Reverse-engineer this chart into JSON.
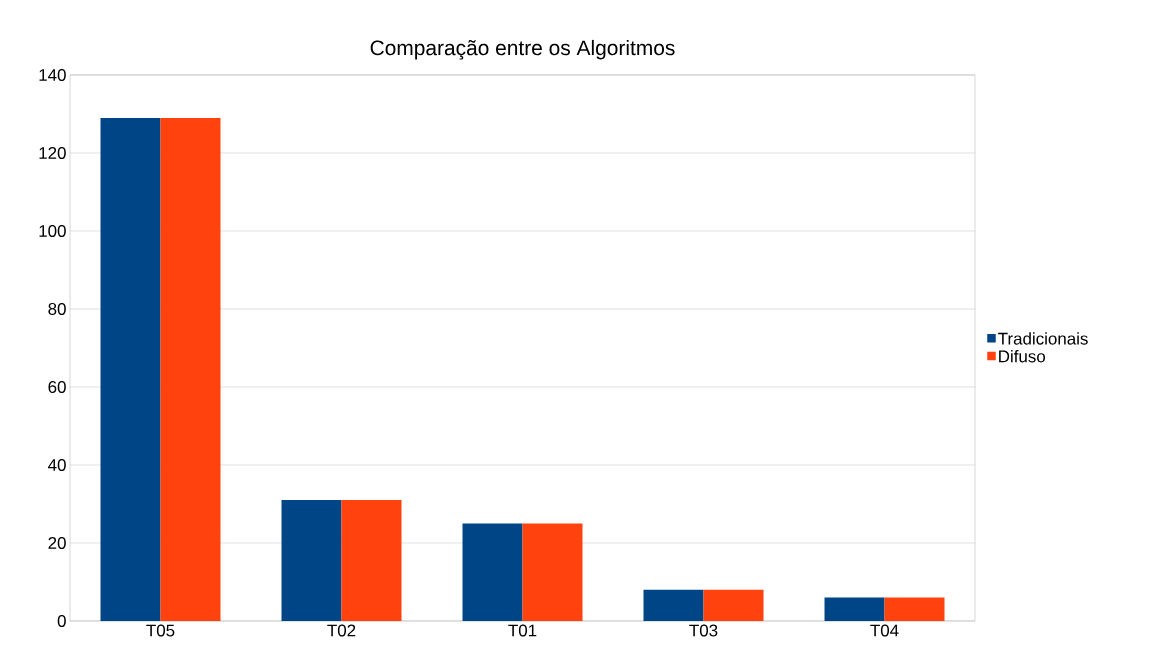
{
  "chart_data": {
    "type": "bar",
    "title": "Comparação entre os Algoritmos",
    "categories": [
      "T05",
      "T02",
      "T01",
      "T03",
      "T04"
    ],
    "series": [
      {
        "name": "Tradicionais",
        "color": "#004586",
        "values": [
          129,
          31,
          25,
          8,
          6
        ]
      },
      {
        "name": "Difuso",
        "color": "#ff420e",
        "values": [
          129,
          31,
          25,
          8,
          6
        ]
      }
    ],
    "ylim": [
      0,
      140
    ],
    "yticks": [
      0,
      20,
      40,
      60,
      80,
      100,
      120,
      140
    ],
    "grid": "y",
    "legend": "right"
  }
}
